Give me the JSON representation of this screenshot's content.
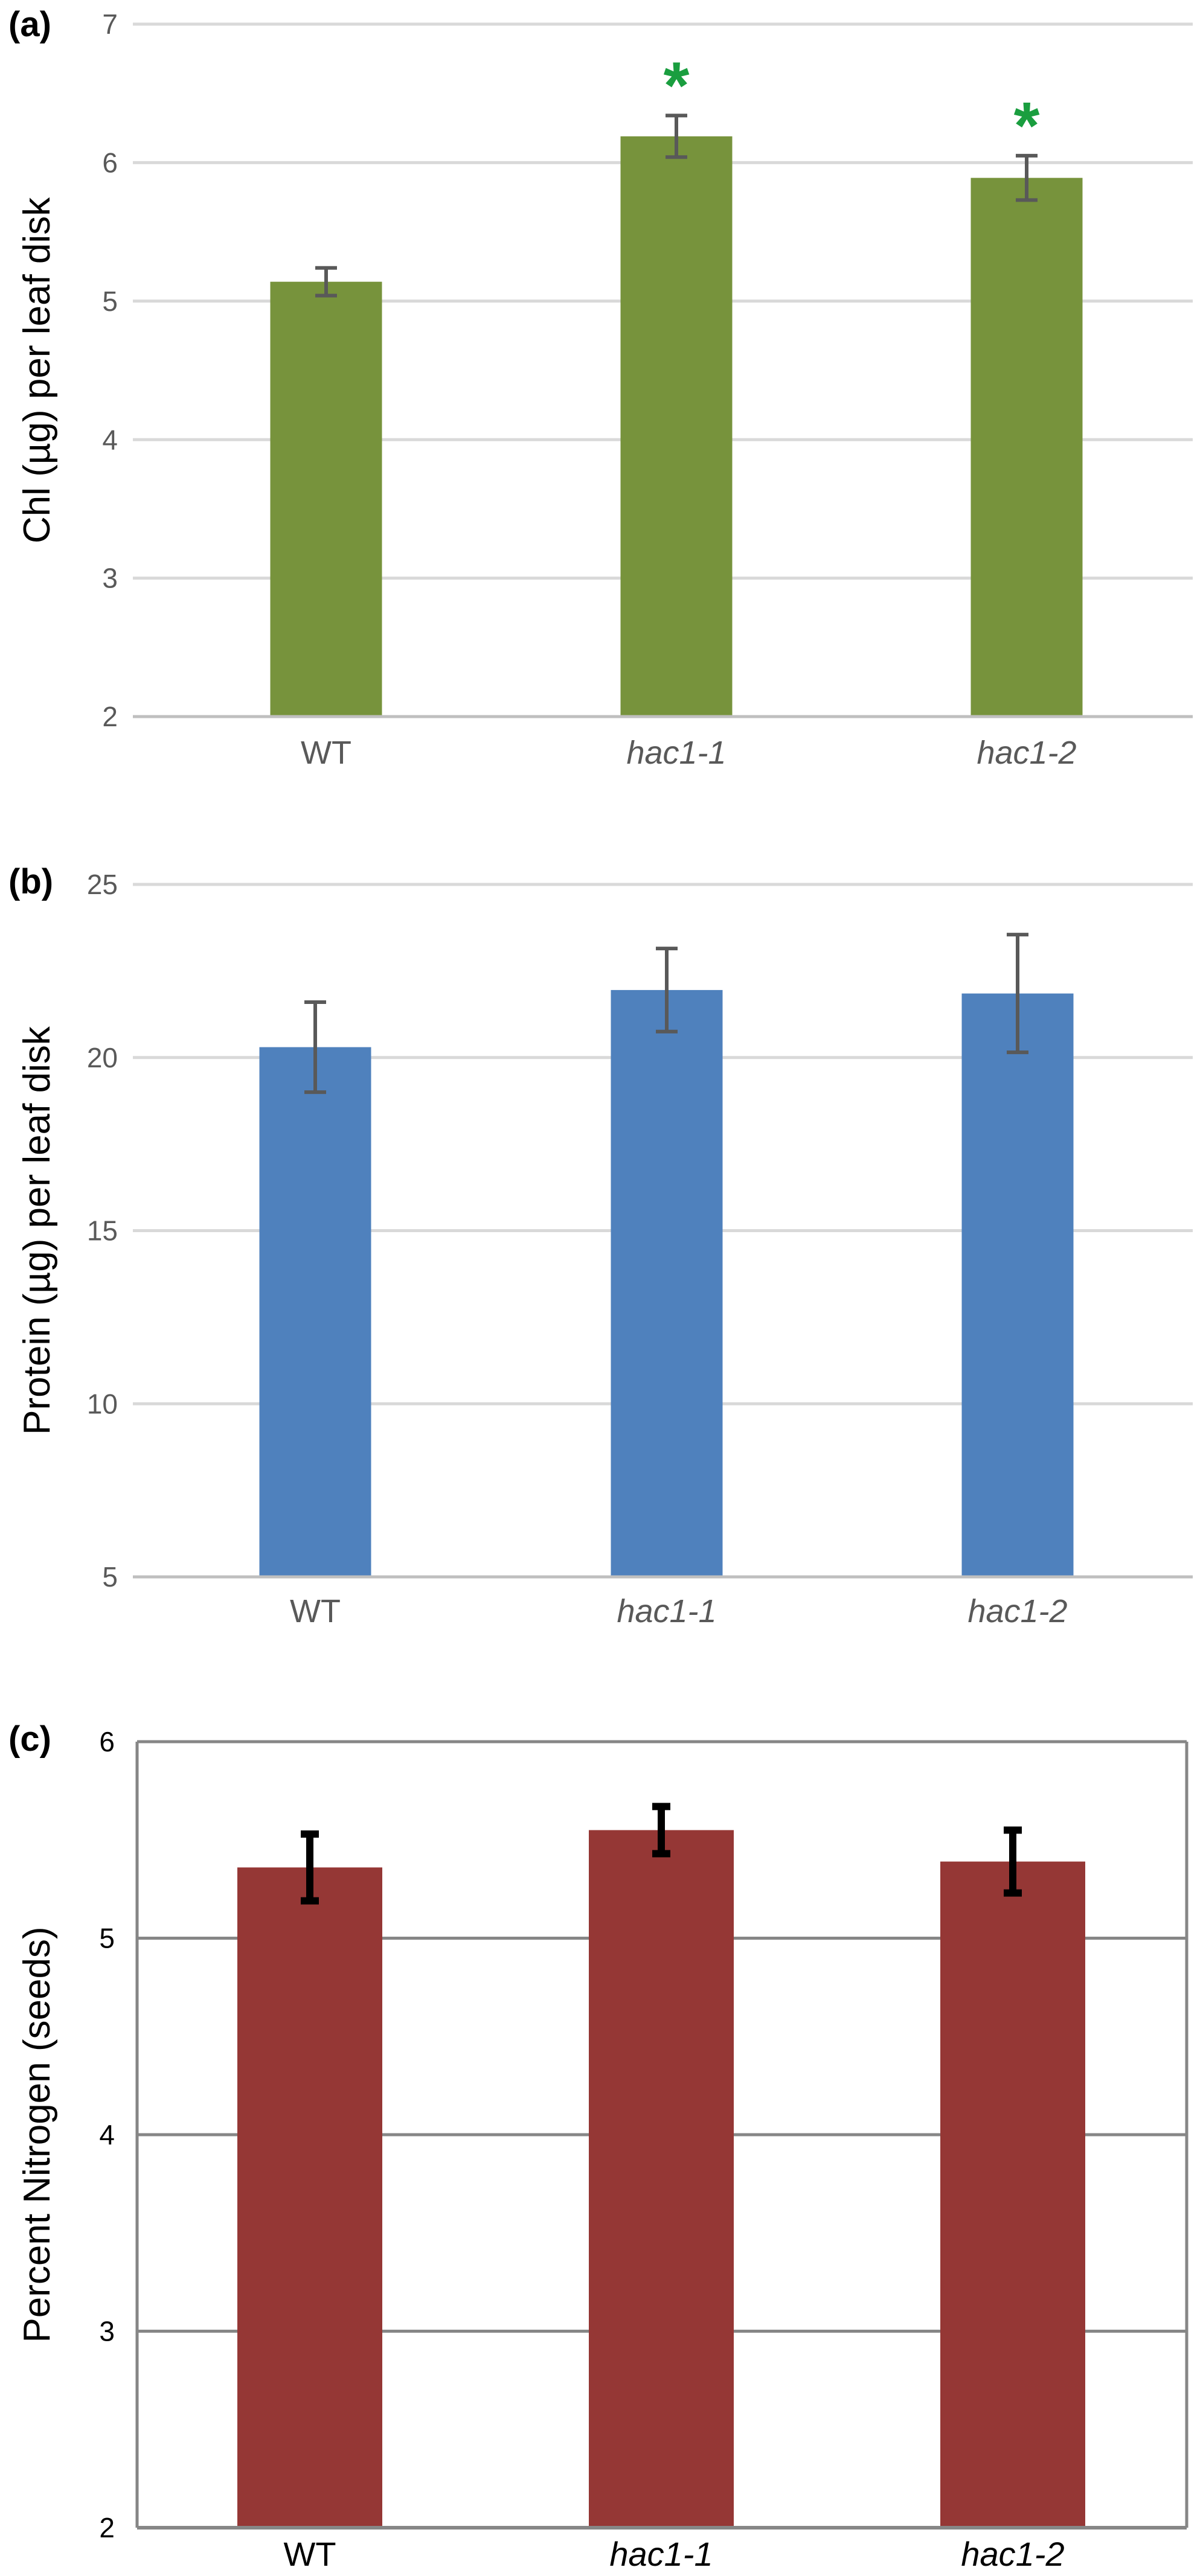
{
  "chart_data": [
    {
      "type": "bar",
      "panel_label": "(a)",
      "ylabel": "Chl (µg) per leaf disk",
      "categories": [
        "WT",
        "hac1-1",
        "hac1-2"
      ],
      "italic_categories": [
        false,
        true,
        true
      ],
      "values": [
        5.14,
        6.19,
        5.89
      ],
      "errors": [
        0.1,
        0.15,
        0.16
      ],
      "significance": [
        "",
        "*",
        "*"
      ],
      "ylim": [
        2,
        7
      ],
      "yticks": [
        2,
        3,
        4,
        5,
        6,
        7
      ],
      "bar_color": "#77933c",
      "significance_color": "#1a9e3f",
      "error_color": "#595959",
      "grid_color": "#d9d9d9",
      "grid": true,
      "frame": false
    },
    {
      "type": "bar",
      "panel_label": "(b)",
      "ylabel": "Protein (µg) per leaf disk",
      "categories": [
        "WT",
        "hac1-1",
        "hac1-2"
      ],
      "italic_categories": [
        false,
        true,
        true
      ],
      "values": [
        20.3,
        21.95,
        21.85
      ],
      "errors": [
        1.3,
        1.2,
        1.7
      ],
      "significance": [
        "",
        "",
        ""
      ],
      "ylim": [
        5,
        25
      ],
      "yticks": [
        5,
        10,
        15,
        20,
        25
      ],
      "bar_color": "#4f81bd",
      "significance_color": "#1a9e3f",
      "error_color": "#595959",
      "grid_color": "#d9d9d9",
      "grid": true,
      "frame": false
    },
    {
      "type": "bar",
      "panel_label": "(c)",
      "ylabel": "Percent Nitrogen (seeds)",
      "categories": [
        "WT",
        "hac1-1",
        "hac1-2"
      ],
      "italic_categories": [
        false,
        true,
        true
      ],
      "values": [
        5.36,
        5.55,
        5.39
      ],
      "errors": [
        0.17,
        0.12,
        0.16
      ],
      "significance": [
        "",
        "",
        ""
      ],
      "ylim": [
        2,
        6
      ],
      "yticks": [
        2,
        3,
        4,
        5,
        6
      ],
      "bar_color": "#953735",
      "significance_color": "#1a9e3f",
      "error_color": "#000000",
      "grid_color": "#868686",
      "grid": true,
      "frame": true
    }
  ]
}
